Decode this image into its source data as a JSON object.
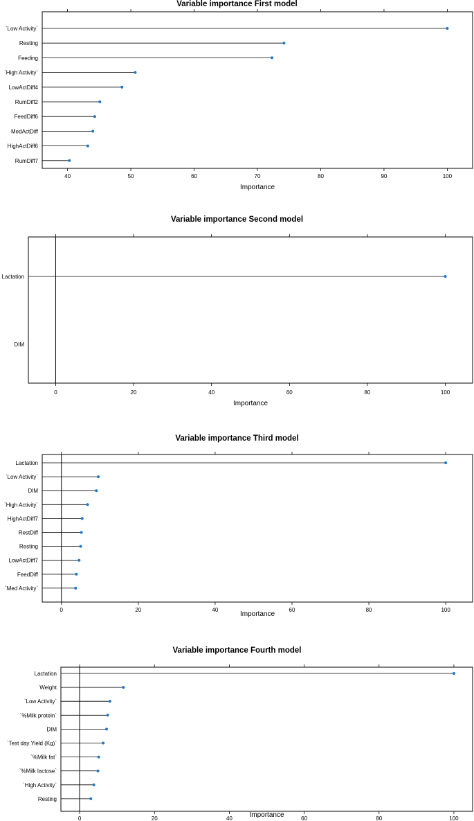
{
  "chart_data": [
    {
      "type": "lollipop",
      "title": "Variable importance First model",
      "xlabel": "Importance",
      "xlim": [
        36,
        104
      ],
      "xticks": [
        40,
        50,
        60,
        70,
        80,
        90,
        100
      ],
      "zero_line": false,
      "categories": [
        "`Low Activity`",
        "Resting",
        "Feeding",
        "`High Activity`",
        "LowActDiff4",
        "RumDiff2",
        "FeedDiff6",
        "MedActDiff",
        "HighActDiff6",
        "RumDiff7"
      ],
      "values": [
        100,
        74.2,
        72.3,
        50.7,
        48.6,
        45.1,
        44.3,
        44.0,
        43.2,
        40.3
      ],
      "color": "#1f77c9"
    },
    {
      "type": "lollipop",
      "title": "Variable importance Second model",
      "xlabel": "Importance",
      "xlim": [
        -7,
        107
      ],
      "xticks": [
        0,
        20,
        40,
        60,
        80,
        100
      ],
      "zero_line": true,
      "categories": [
        "Lactation",
        "DIM"
      ],
      "values": [
        100,
        0
      ],
      "color": "#1f77c9"
    },
    {
      "type": "lollipop",
      "title": "Variable importance Third model",
      "xlabel": "Importance",
      "xlim": [
        -5,
        107
      ],
      "xticks": [
        0,
        20,
        40,
        60,
        80,
        100
      ],
      "zero_line": true,
      "categories": [
        "Lactation",
        "`Low Activity`",
        "DIM",
        "`High Activity`",
        "HighActDiff7",
        "RestDiff",
        "Resting",
        "LowActDiff7",
        "FeedDiff",
        "`Med Activity`"
      ],
      "values": [
        100,
        9.6,
        9.1,
        6.8,
        5.4,
        5.2,
        5.0,
        4.6,
        3.9,
        3.7
      ],
      "color": "#1f77c9"
    },
    {
      "type": "lollipop",
      "title": "Variable importance Fourth model",
      "xlabel": "Importance",
      "xlim": [
        -5,
        105
      ],
      "xticks": [
        0,
        20,
        40,
        60,
        80,
        100
      ],
      "zero_line": true,
      "categories": [
        "Lactation",
        "Weight",
        "`Low Activity`",
        "`%Milk protein`",
        "DIM",
        "`Test day Yield (Kg)`",
        "`%Milk fat`",
        "`%Milk lactose`",
        "`High Activity`",
        "Resting"
      ],
      "values": [
        100,
        11.7,
        8.1,
        7.5,
        7.2,
        6.3,
        5.1,
        4.9,
        3.8,
        3.0
      ],
      "color": "#1f77c9"
    }
  ]
}
